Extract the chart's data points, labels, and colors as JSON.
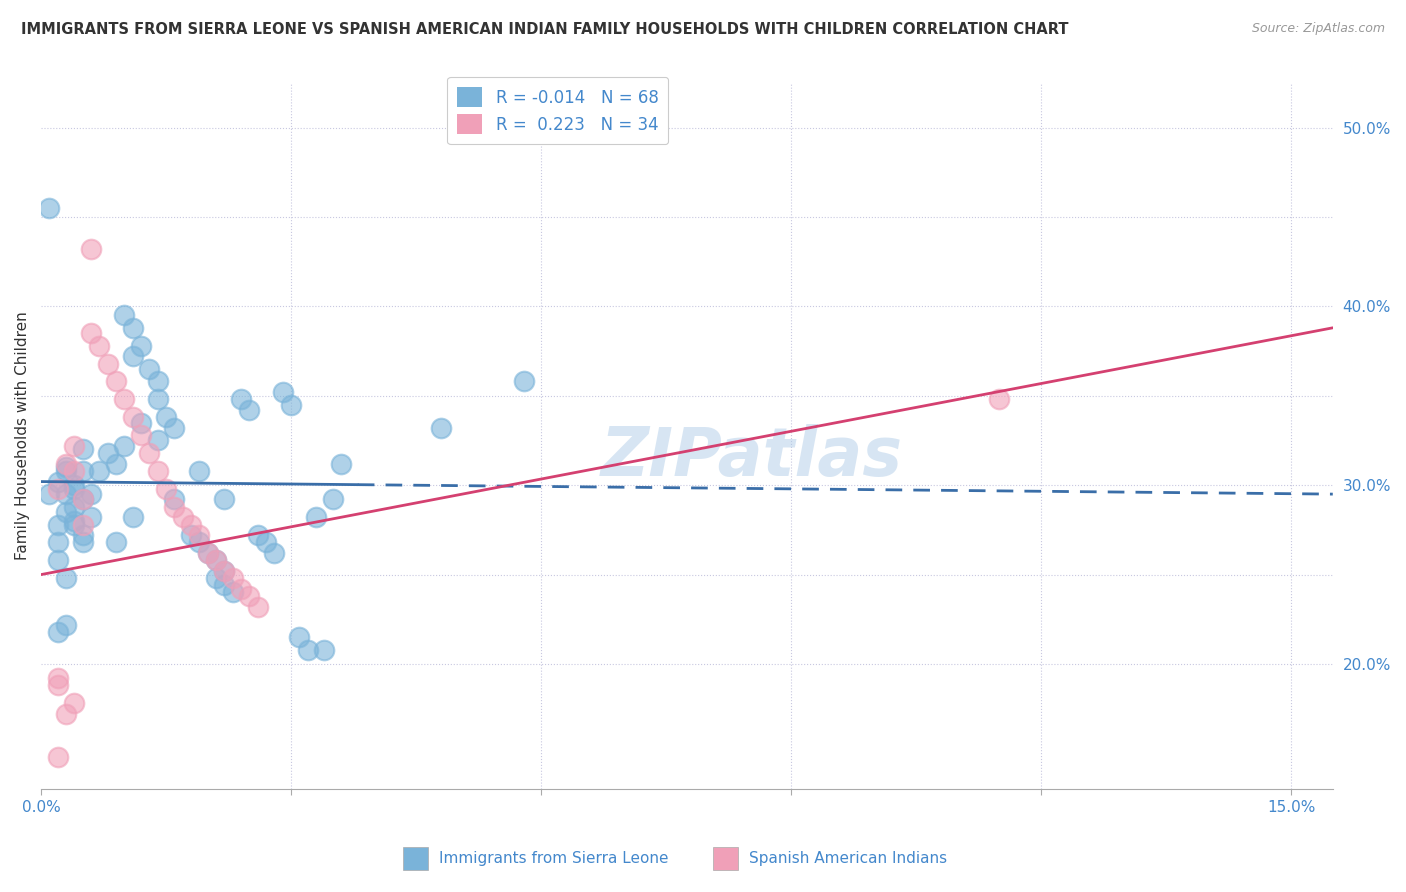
{
  "title": "IMMIGRANTS FROM SIERRA LEONE VS SPANISH AMERICAN INDIAN FAMILY HOUSEHOLDS WITH CHILDREN CORRELATION CHART",
  "source": "Source: ZipAtlas.com",
  "xlabel_bottom": [
    "Immigrants from Sierra Leone",
    "Spanish American Indians"
  ],
  "ylabel": "Family Households with Children",
  "xlim": [
    0.0,
    0.155
  ],
  "ylim": [
    0.13,
    0.525
  ],
  "R_blue": -0.014,
  "N_blue": 68,
  "R_pink": 0.223,
  "N_pink": 34,
  "blue_color": "#7ab3d9",
  "pink_color": "#f0a0b8",
  "blue_line_color": "#3a6ea8",
  "pink_line_color": "#d44070",
  "blue_scatter": [
    [
      0.003,
      0.295
    ],
    [
      0.003,
      0.31
    ],
    [
      0.005,
      0.32
    ],
    [
      0.004,
      0.3
    ],
    [
      0.006,
      0.295
    ],
    [
      0.005,
      0.308
    ],
    [
      0.003,
      0.285
    ],
    [
      0.004,
      0.278
    ],
    [
      0.002,
      0.268
    ],
    [
      0.005,
      0.272
    ],
    [
      0.004,
      0.28
    ],
    [
      0.005,
      0.292
    ],
    [
      0.008,
      0.318
    ],
    [
      0.009,
      0.312
    ],
    [
      0.01,
      0.322
    ],
    [
      0.012,
      0.335
    ],
    [
      0.01,
      0.395
    ],
    [
      0.011,
      0.388
    ],
    [
      0.012,
      0.378
    ],
    [
      0.011,
      0.372
    ],
    [
      0.013,
      0.365
    ],
    [
      0.014,
      0.358
    ],
    [
      0.014,
      0.348
    ],
    [
      0.015,
      0.338
    ],
    [
      0.016,
      0.332
    ],
    [
      0.018,
      0.272
    ],
    [
      0.019,
      0.268
    ],
    [
      0.02,
      0.262
    ],
    [
      0.021,
      0.258
    ],
    [
      0.022,
      0.252
    ],
    [
      0.021,
      0.248
    ],
    [
      0.022,
      0.244
    ],
    [
      0.023,
      0.24
    ],
    [
      0.024,
      0.348
    ],
    [
      0.025,
      0.342
    ],
    [
      0.026,
      0.272
    ],
    [
      0.027,
      0.268
    ],
    [
      0.028,
      0.262
    ],
    [
      0.029,
      0.352
    ],
    [
      0.03,
      0.345
    ],
    [
      0.031,
      0.215
    ],
    [
      0.032,
      0.208
    ],
    [
      0.033,
      0.282
    ],
    [
      0.034,
      0.208
    ],
    [
      0.035,
      0.292
    ],
    [
      0.036,
      0.312
    ],
    [
      0.002,
      0.302
    ],
    [
      0.003,
      0.308
    ],
    [
      0.004,
      0.298
    ],
    [
      0.004,
      0.288
    ],
    [
      0.002,
      0.278
    ],
    [
      0.002,
      0.258
    ],
    [
      0.003,
      0.248
    ],
    [
      0.007,
      0.308
    ],
    [
      0.005,
      0.268
    ],
    [
      0.006,
      0.282
    ],
    [
      0.048,
      0.332
    ],
    [
      0.058,
      0.358
    ],
    [
      0.002,
      0.218
    ],
    [
      0.003,
      0.222
    ],
    [
      0.009,
      0.268
    ],
    [
      0.011,
      0.282
    ],
    [
      0.014,
      0.325
    ],
    [
      0.016,
      0.292
    ],
    [
      0.019,
      0.308
    ],
    [
      0.022,
      0.292
    ],
    [
      0.001,
      0.455
    ],
    [
      0.001,
      0.295
    ]
  ],
  "pink_scatter": [
    [
      0.002,
      0.298
    ],
    [
      0.003,
      0.312
    ],
    [
      0.004,
      0.322
    ],
    [
      0.004,
      0.308
    ],
    [
      0.005,
      0.292
    ],
    [
      0.005,
      0.278
    ],
    [
      0.006,
      0.385
    ],
    [
      0.007,
      0.378
    ],
    [
      0.008,
      0.368
    ],
    [
      0.009,
      0.358
    ],
    [
      0.01,
      0.348
    ],
    [
      0.011,
      0.338
    ],
    [
      0.012,
      0.328
    ],
    [
      0.013,
      0.318
    ],
    [
      0.014,
      0.308
    ],
    [
      0.015,
      0.298
    ],
    [
      0.016,
      0.288
    ],
    [
      0.017,
      0.282
    ],
    [
      0.018,
      0.278
    ],
    [
      0.019,
      0.272
    ],
    [
      0.02,
      0.262
    ],
    [
      0.021,
      0.258
    ],
    [
      0.022,
      0.252
    ],
    [
      0.023,
      0.248
    ],
    [
      0.024,
      0.242
    ],
    [
      0.025,
      0.238
    ],
    [
      0.026,
      0.232
    ],
    [
      0.006,
      0.432
    ],
    [
      0.002,
      0.188
    ],
    [
      0.002,
      0.192
    ],
    [
      0.003,
      0.172
    ],
    [
      0.004,
      0.178
    ],
    [
      0.002,
      0.148
    ],
    [
      0.115,
      0.348
    ]
  ],
  "watermark": "ZIPatlas",
  "background_color": "#ffffff",
  "grid_color": "#c8c8e0",
  "title_color": "#333333",
  "axis_label_color": "#4488cc",
  "tick_color": "#4488cc"
}
